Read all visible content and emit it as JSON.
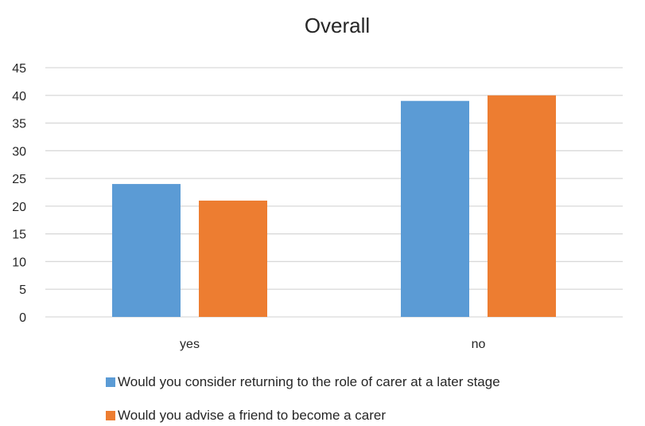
{
  "chart_data": {
    "type": "bar",
    "title": "Overall",
    "xlabel": "",
    "ylabel": "",
    "categories": [
      "yes",
      "no"
    ],
    "series": [
      {
        "name": "Would you consider returning to the role of carer at a later stage",
        "values": [
          24,
          39
        ],
        "color": "#5b9bd5"
      },
      {
        "name": "Would you advise a friend to become a carer",
        "values": [
          21,
          40
        ],
        "color": "#ed7d31"
      }
    ],
    "ylim": [
      0,
      45
    ],
    "yticks": [
      0,
      5,
      10,
      15,
      20,
      25,
      30,
      35,
      40,
      45
    ],
    "grid": true,
    "legend_position": "bottom"
  }
}
